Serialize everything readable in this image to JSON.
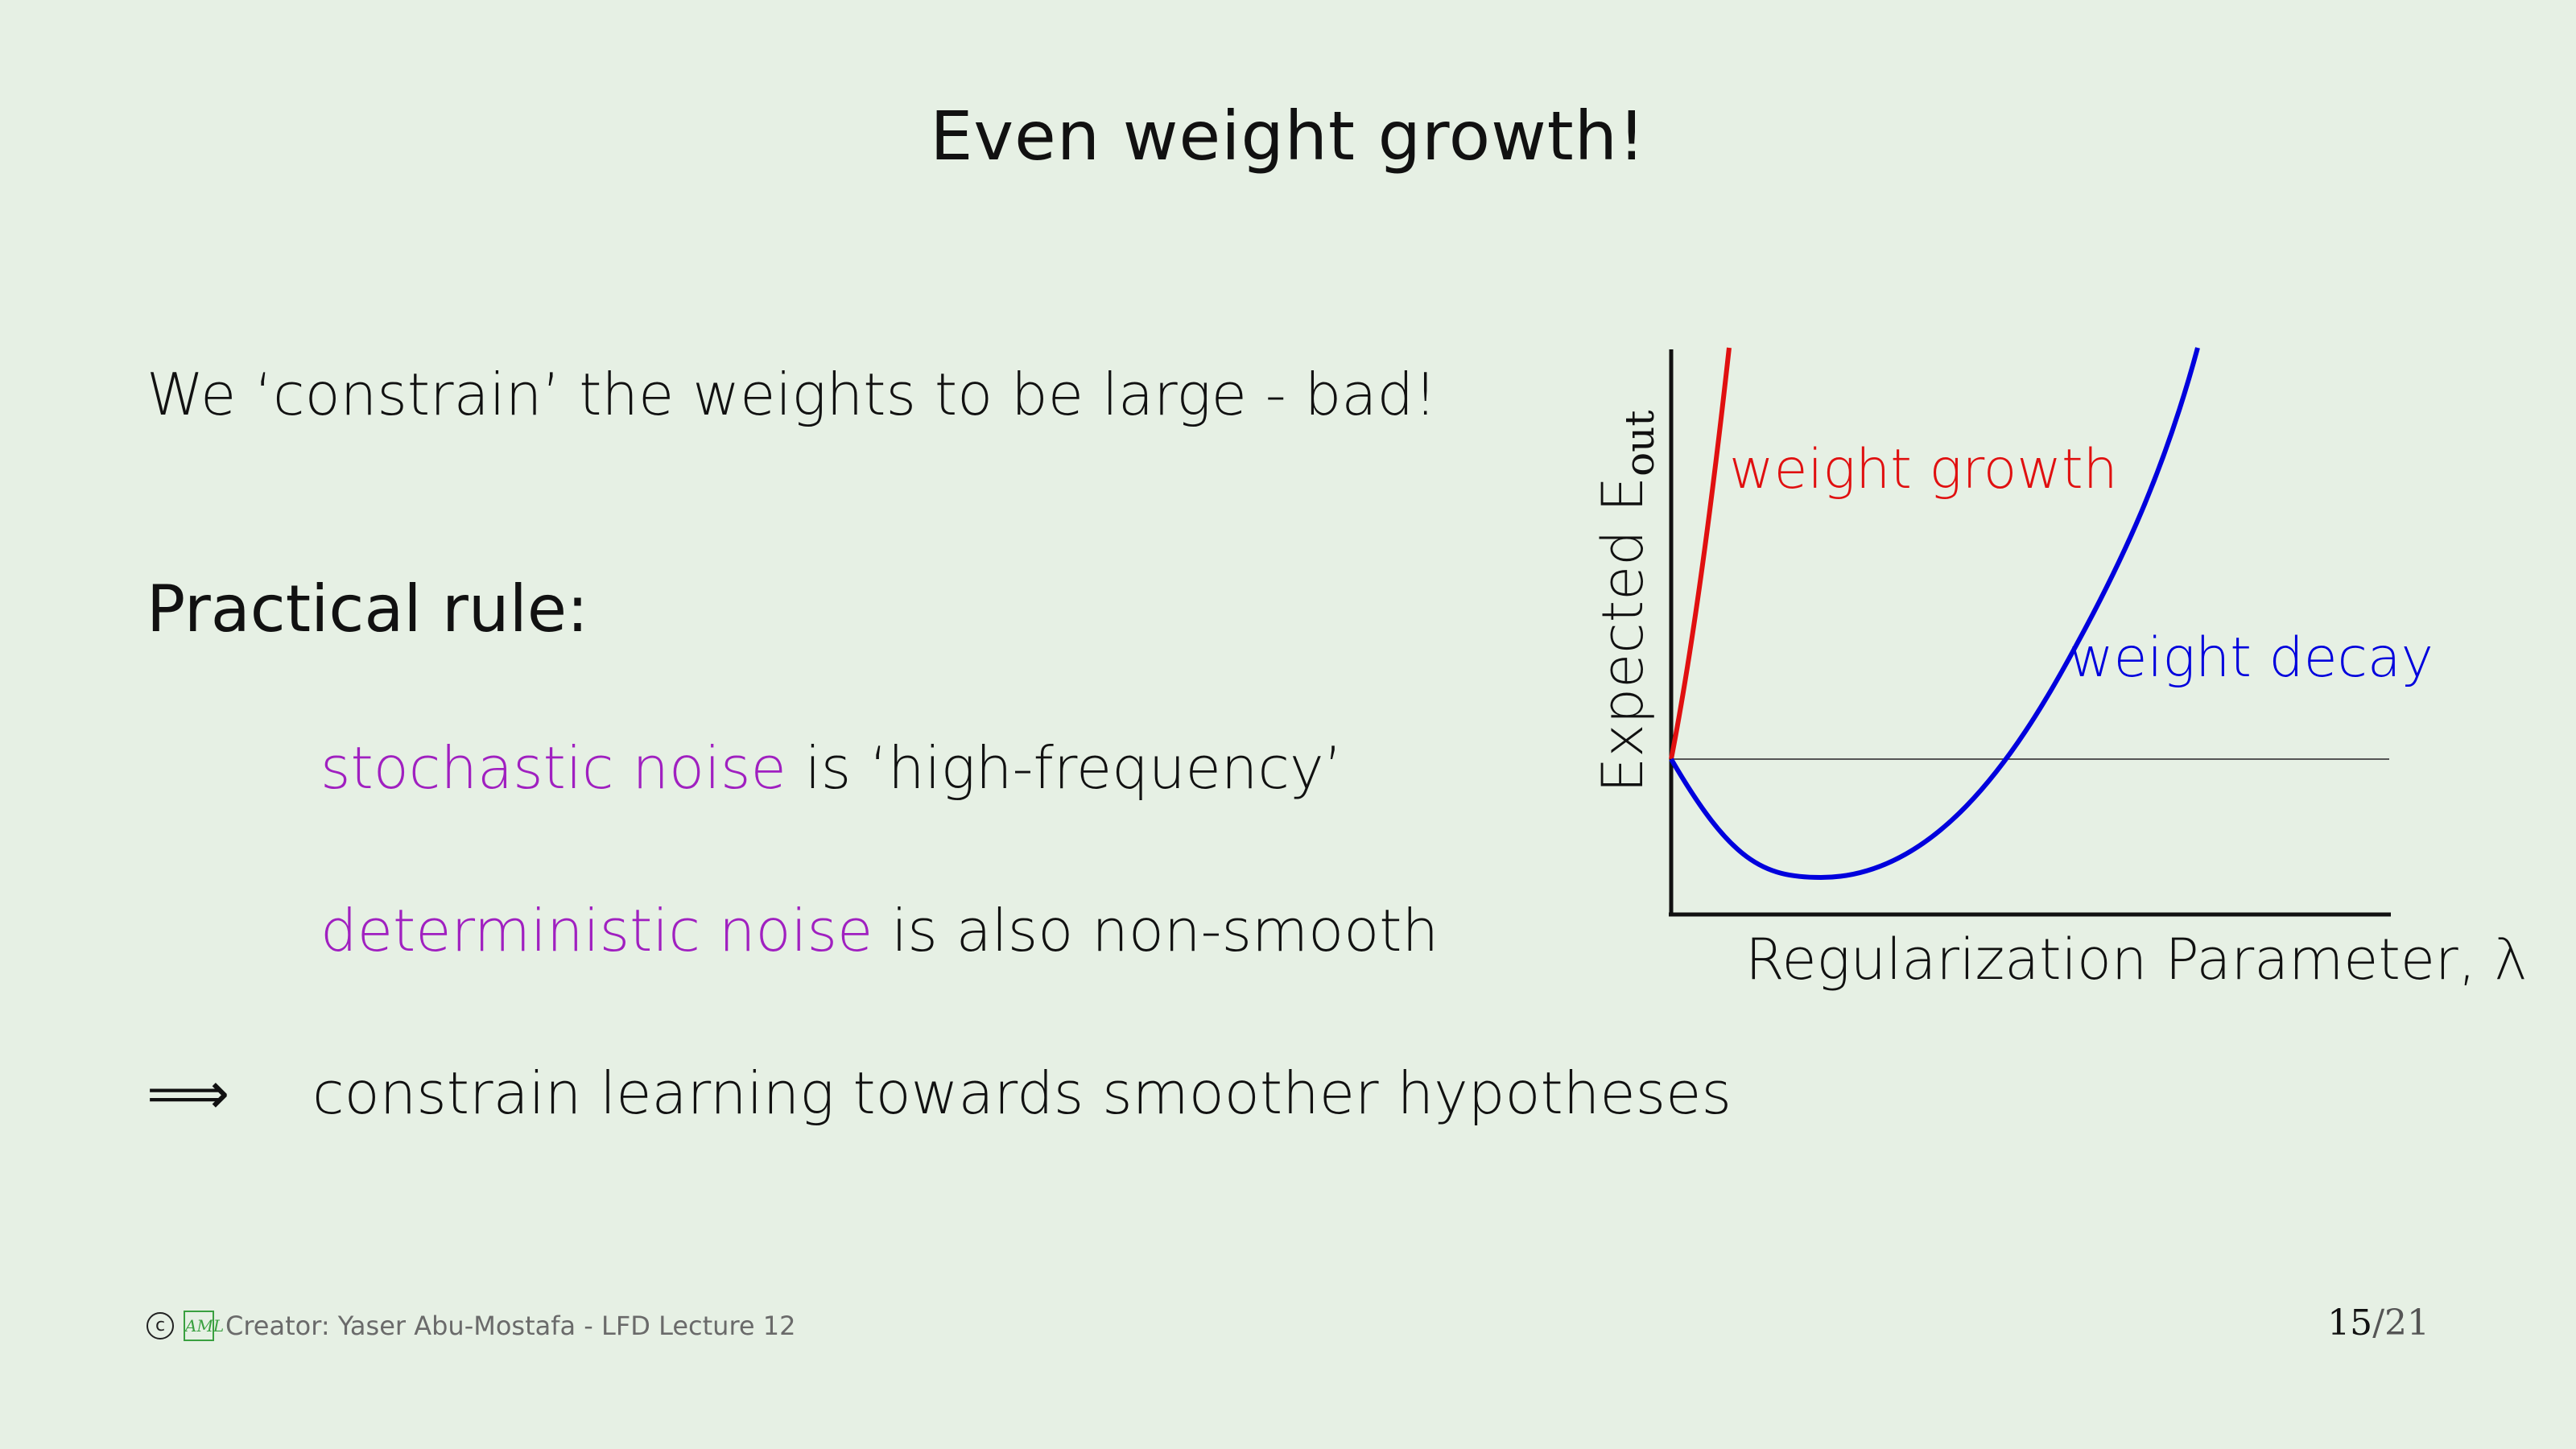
{
  "slide": {
    "title": "Even weight growth!",
    "line1": "We ‘constrain’ the weights to be large - bad!",
    "heading": "Practical rule:",
    "bullet1_colored": "stochastic noise",
    "bullet1_rest": " is ‘high-frequency’",
    "bullet2_colored": "deterministic noise",
    "bullet2_rest": " is also non-smooth",
    "implies_symbol": "⟹",
    "conclusion": "constrain learning towards smoother hypotheses"
  },
  "chart_data": {
    "type": "line",
    "xlabel": "Regularization Parameter, λ",
    "ylabel": "Expected E",
    "ylabel_subscript": "out",
    "series": [
      {
        "name": "weight growth",
        "color": "#e01010"
      },
      {
        "name": "weight decay",
        "color": "#0000dd"
      }
    ],
    "baseline": "horizontal reference line at initial value",
    "grid": false
  },
  "footer": {
    "copyright_symbol": "c",
    "logo_text": "AML",
    "creator": "Creator: Yaser Abu-Mostafa - LFD Lecture 12",
    "page_current": "15",
    "page_total": "/21"
  },
  "colors": {
    "background": "#e6f0e4",
    "highlight": "#a020c0",
    "growth": "#e01010",
    "decay": "#0000dd"
  }
}
